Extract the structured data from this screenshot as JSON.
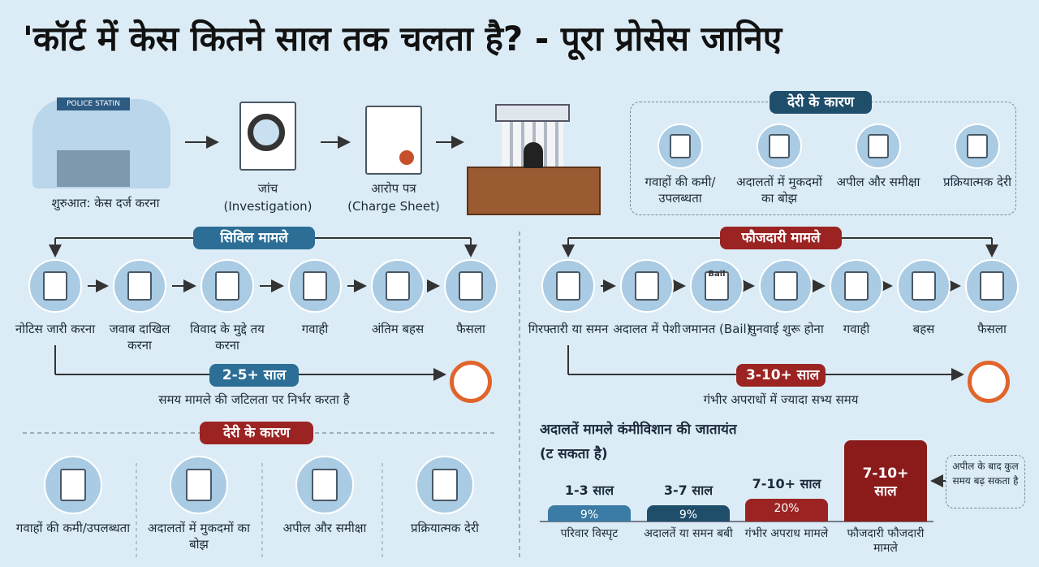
{
  "title": "'कॉर्ट में केस कितने साल तक चलता है? - पूरा प्रोसेस जानिए",
  "intro": {
    "sign": "POLICE STATIN",
    "steps": [
      {
        "label": "शुरुआत: केस दर्ज करना"
      },
      {
        "label": "जांच",
        "sub": "(Investigation)"
      },
      {
        "label": "आरोप पत्र",
        "sub": "(Charge Sheet)"
      }
    ]
  },
  "delay_top": {
    "title": "देरी के कारण",
    "items": [
      "गवाहों की कमी/उपलब्धता",
      "अदालतों में मुकदमों का बोझ",
      "अपील और समीक्षा",
      "प्रक्रियात्मक देरी"
    ]
  },
  "civil": {
    "title": "सिविल मामले",
    "steps": [
      "नोटिस जारी करना",
      "जवाब दाखिल करना",
      "विवाद के मुद्दे तय करना",
      "गवाही",
      "अंतिम बहस",
      "फैसला"
    ],
    "duration": "2-5+ साल",
    "note": "समय मामले की जटिलता पर निर्भर करता है"
  },
  "criminal": {
    "title": "फौजदारी मामले",
    "steps": [
      "गिरफ्तारी या समन",
      "अदालत में पेशी",
      "जमानत (Bail)",
      "सुनवाई शुरू होना",
      "गवाही",
      "बहस",
      "फैसला"
    ],
    "bail_tag": "Bail",
    "duration": "3-10+ साल",
    "note": "गंभीर अपराधों में ज्यादा सभ्य समय"
  },
  "delay_bottom": {
    "title": "देरी के कारण",
    "items": [
      "गवाहों की कमी/उपलब्धता",
      "अदालतों में मुकदमों का बोझ",
      "अपील और समीक्षा",
      "प्रक्रियात्मक देरी"
    ]
  },
  "comparison": {
    "title": "अदालतें मामले कंमीविशान की जातायंत",
    "subtitle": "(ट सकता है)",
    "bars": [
      {
        "years": "1-3 साल",
        "pct": "9%",
        "label": "परिवार विस्पृट"
      },
      {
        "years": "3-7 साल",
        "pct": "9%",
        "label": "अदालतें या समन बबी"
      },
      {
        "years": "7-10+ साल",
        "pct": "20%",
        "label": "गंभीर अपराध मामले"
      },
      {
        "years": "7-10+ साल",
        "label": "फौजदारी फौजदारी मामले"
      }
    ],
    "aside": "अपील के बाद कुल समय बढ़ सकता है"
  }
}
